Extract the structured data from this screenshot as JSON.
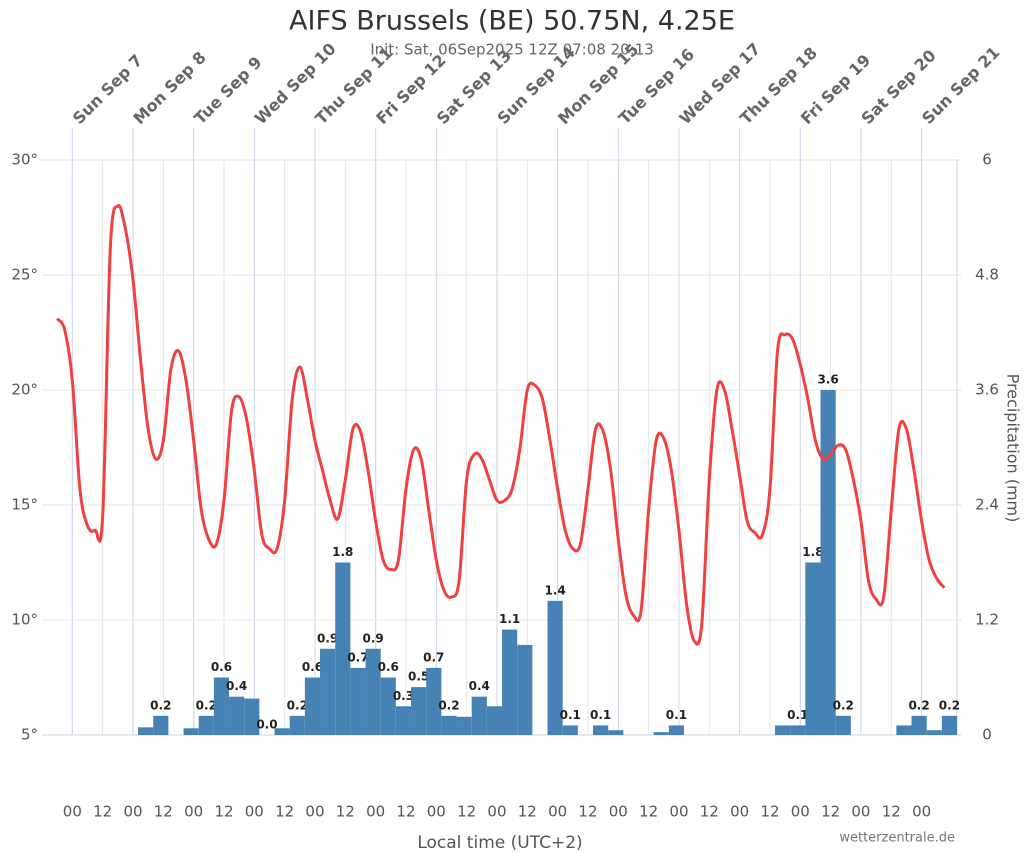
{
  "chart_data": {
    "type": "temperature-precipitation",
    "title": "AIFS Brussels (BE) 50.75N, 4.25E",
    "subtitle": "Init: Sat, 06Sep2025 12Z 07:08 20:13",
    "xlabel": "Local time (UTC+2)",
    "y2label": "Precipitation (mm)",
    "credit": "wetterzentrale.de",
    "xlim": [
      -12,
      350
    ],
    "ylim": [
      5,
      30
    ],
    "yticks": [
      {
        "value": 5,
        "label": "5°"
      },
      {
        "value": 10,
        "label": "10°"
      },
      {
        "value": 15,
        "label": "15°"
      },
      {
        "value": 20,
        "label": "20°"
      },
      {
        "value": 25,
        "label": "25°"
      },
      {
        "value": 30,
        "label": "30°"
      }
    ],
    "y2lim": [
      0,
      6
    ],
    "y2ticks": [
      0,
      1.2,
      2.4,
      3.6,
      4.8,
      6
    ],
    "grid": true,
    "top_ticks": [
      {
        "value": 0,
        "label": "Sun Sep 7"
      },
      {
        "value": 24,
        "label": "Mon Sep 8"
      },
      {
        "value": 48,
        "label": "Tue Sep 9"
      },
      {
        "value": 72,
        "label": "Wed Sep 10"
      },
      {
        "value": 96,
        "label": "Thu Sep 11"
      },
      {
        "value": 120,
        "label": "Fri Sep 12"
      },
      {
        "value": 144,
        "label": "Sat Sep 13"
      },
      {
        "value": 168,
        "label": "Sun Sep 14"
      },
      {
        "value": 192,
        "label": "Mon Sep 15"
      },
      {
        "value": 216,
        "label": "Tue Sep 16"
      },
      {
        "value": 240,
        "label": "Wed Sep 17"
      },
      {
        "value": 264,
        "label": "Thu Sep 18"
      },
      {
        "value": 288,
        "label": "Fri Sep 19"
      },
      {
        "value": 312,
        "label": "Sat Sep 20"
      },
      {
        "value": 336,
        "label": "Sun Sep 21"
      }
    ],
    "xticks": [
      {
        "value": 0,
        "label": "00"
      },
      {
        "value": 12,
        "label": "12"
      },
      {
        "value": 24,
        "label": "00"
      },
      {
        "value": 36,
        "label": "12"
      },
      {
        "value": 48,
        "label": "00"
      },
      {
        "value": 60,
        "label": "12"
      },
      {
        "value": 72,
        "label": "00"
      },
      {
        "value": 84,
        "label": "12"
      },
      {
        "value": 96,
        "label": "00"
      },
      {
        "value": 108,
        "label": "12"
      },
      {
        "value": 120,
        "label": "00"
      },
      {
        "value": 132,
        "label": "12"
      },
      {
        "value": 144,
        "label": "00"
      },
      {
        "value": 156,
        "label": "12"
      },
      {
        "value": 168,
        "label": "00"
      },
      {
        "value": 180,
        "label": "12"
      },
      {
        "value": 192,
        "label": "00"
      },
      {
        "value": 204,
        "label": "12"
      },
      {
        "value": 216,
        "label": "00"
      },
      {
        "value": 228,
        "label": "12"
      },
      {
        "value": 240,
        "label": "00"
      },
      {
        "value": 252,
        "label": "12"
      },
      {
        "value": 264,
        "label": "00"
      },
      {
        "value": 276,
        "label": "12"
      },
      {
        "value": 288,
        "label": "00"
      },
      {
        "value": 300,
        "label": "12"
      },
      {
        "value": 312,
        "label": "00"
      },
      {
        "value": 324,
        "label": "12"
      },
      {
        "value": 336,
        "label": "00"
      }
    ],
    "line": {
      "color": "#f04040",
      "x": [
        -6,
        -3,
        0,
        3,
        6,
        9,
        12,
        15,
        18,
        21,
        24,
        27,
        30,
        33,
        36,
        39,
        42,
        45,
        48,
        51,
        54,
        57,
        60,
        63,
        66,
        69,
        72,
        75,
        78,
        81,
        84,
        87,
        90,
        93,
        96,
        99,
        102,
        105,
        108,
        111,
        114,
        117,
        120,
        123,
        126,
        129,
        132,
        135,
        138,
        141,
        144,
        147,
        150,
        153,
        156,
        159,
        162,
        165,
        168,
        171,
        174,
        177,
        180,
        183,
        186,
        189,
        192,
        195,
        198,
        201,
        204,
        207,
        210,
        213,
        216,
        219,
        222,
        225,
        228,
        231,
        234,
        237,
        240,
        243,
        246,
        249,
        252,
        255,
        258,
        261,
        264,
        267,
        270,
        273,
        276,
        279,
        282,
        285,
        288,
        291,
        294,
        297,
        300,
        303,
        306,
        309,
        312,
        315,
        318,
        321,
        324,
        327,
        330,
        333,
        336,
        339,
        342,
        345
      ],
      "values": [
        23.1,
        22.6,
        20.4,
        15.7,
        14.1,
        13.9,
        14.5,
        26.1,
        28.0,
        27.0,
        24.8,
        21.3,
        18.3,
        17.0,
        17.8,
        20.9,
        21.7,
        20.4,
        17.8,
        14.8,
        13.5,
        13.3,
        15.2,
        19.1,
        19.7,
        18.7,
        16.5,
        13.7,
        13.1,
        13.1,
        15.2,
        19.6,
        21.0,
        19.6,
        17.8,
        16.5,
        15.2,
        14.4,
        16.1,
        18.3,
        18.2,
        16.5,
        14.3,
        12.6,
        12.2,
        12.6,
        15.7,
        17.4,
        17.0,
        14.8,
        12.6,
        11.3,
        11.0,
        11.7,
        16.1,
        17.2,
        17.0,
        16.1,
        15.2,
        15.2,
        15.7,
        17.4,
        20.0,
        20.2,
        19.6,
        17.8,
        15.7,
        13.9,
        13.1,
        13.3,
        15.7,
        18.3,
        18.2,
        16.5,
        13.5,
        11.1,
        10.2,
        10.4,
        14.8,
        17.8,
        17.9,
        16.5,
        13.9,
        10.7,
        9.1,
        9.8,
        16.1,
        20.0,
        20.0,
        18.3,
        16.3,
        14.3,
        13.8,
        13.7,
        15.7,
        21.7,
        22.4,
        22.2,
        21.1,
        19.6,
        17.8,
        17.0,
        17.2,
        17.6,
        17.4,
        16.1,
        14.3,
        11.7,
        10.9,
        11.0,
        14.8,
        18.3,
        18.3,
        16.5,
        14.3,
        12.6,
        11.8,
        11.4
      ]
    },
    "bars": {
      "color": "#4682b4",
      "axis": "y2",
      "x": [
        29,
        35,
        47,
        53,
        59,
        65,
        71,
        77,
        83,
        89,
        95,
        101,
        107,
        113,
        119,
        125,
        131,
        137,
        143,
        149,
        155,
        161,
        167,
        173,
        179,
        191,
        197,
        209,
        215,
        233,
        239,
        281,
        287,
        293,
        299,
        305,
        329,
        335,
        341,
        347
      ],
      "values": [
        0.08,
        0.2,
        0.07,
        0.2,
        0.6,
        0.4,
        0.38,
        0,
        0.07,
        0.2,
        0.6,
        0.9,
        1.8,
        0.7,
        0.9,
        0.6,
        0.3,
        0.5,
        0.7,
        0.2,
        0.19,
        0.4,
        0.3,
        1.1,
        0.94,
        1.4,
        0.1,
        0.1,
        0.05,
        0.03,
        0.1,
        0.1,
        0.1,
        1.8,
        3.6,
        0.2,
        0.1,
        0.2,
        0.05,
        0.2
      ],
      "value_labels": [
        null,
        "0.2",
        null,
        "0.2",
        "0.6",
        "0.4",
        null,
        "0.0",
        null,
        "0.2",
        "0.6",
        "0.9",
        "1.8",
        "0.7",
        "0.9",
        "0.6",
        "0.3",
        "0.5",
        "0.7",
        "0.2",
        null,
        "0.4",
        null,
        "1.1",
        null,
        "1.4",
        "0.1",
        "0.1",
        null,
        null,
        "0.1",
        null,
        "0.1",
        "1.8",
        "3.6",
        "0.2",
        null,
        "0.2",
        null,
        "0.2"
      ]
    }
  }
}
